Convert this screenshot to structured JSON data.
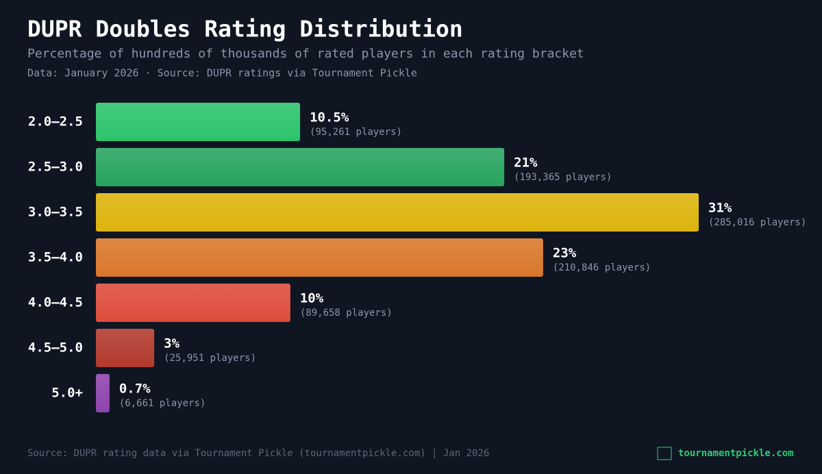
{
  "chart_data": {
    "type": "bar",
    "orientation": "horizontal",
    "title": "DUPR Doubles Rating Distribution",
    "subtitle": "Percentage of hundreds of thousands of rated players in each rating bracket",
    "note": "Data: January 2026 · Source: DUPR ratings via Tournament Pickle",
    "categories": [
      "2.0–2.5",
      "2.5–3.0",
      "3.0–3.5",
      "3.5–4.0",
      "4.0–4.5",
      "4.5–5.0",
      "5.0+"
    ],
    "values": [
      10.5,
      21,
      31,
      23,
      10,
      3,
      0.7
    ],
    "value_labels": [
      "10.5%",
      "21%",
      "31%",
      "23%",
      "10%",
      "3%",
      "0.7%"
    ],
    "player_labels": [
      "(95,261 players)",
      "(193,365 players)",
      "(285,016 players)",
      "(210,846 players)",
      "(89,658 players)",
      "(25,951 players)",
      "(6,661 players)"
    ],
    "colors": [
      "#2cc36b",
      "#27a35e",
      "#dcb30c",
      "#d9772a",
      "#de4c3d",
      "#b3392d",
      "#8e44ad"
    ],
    "source": "Source: DUPR rating data via Tournament Pickle (tournamentpickle.com) | Jan 2026",
    "brand": "tournamentpickle.com"
  }
}
